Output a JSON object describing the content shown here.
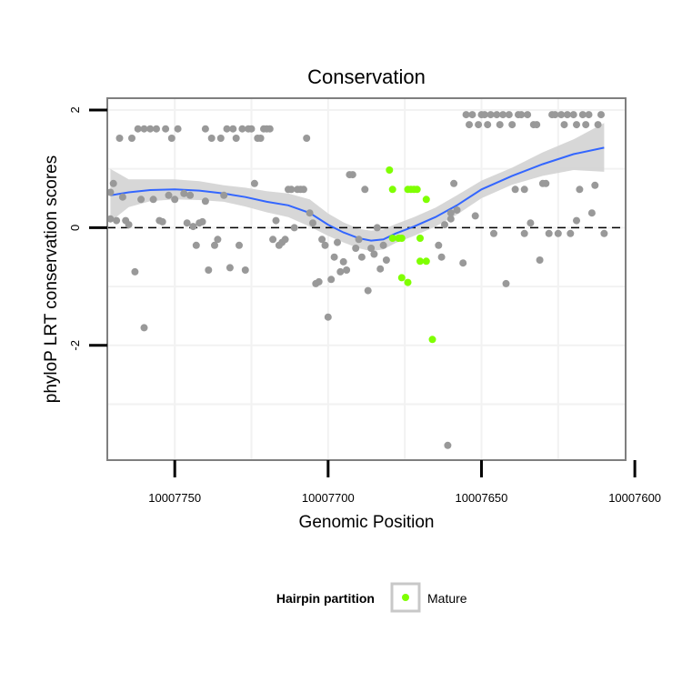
{
  "chart_data": {
    "type": "scatter",
    "title": "Conservation",
    "xlabel": "Genomic Position",
    "ylabel": "phyloP LRT conservation scores",
    "x_reversed": true,
    "xlim": [
      10007772,
      10007603
    ],
    "ylim": [
      -3.95,
      2.2
    ],
    "x_ticks": [
      10007750,
      10007700,
      10007650,
      10007600
    ],
    "x_tick_labels": [
      "10007750",
      "10007700",
      "10007650",
      "10007600"
    ],
    "y_ticks": [
      2,
      0,
      -2
    ],
    "y_tick_labels": [
      "2",
      "0",
      "-2"
    ],
    "grid": true,
    "reference_line": {
      "y": 0,
      "style": "dashed",
      "color": "#000000"
    },
    "legend": {
      "title": "Hairpin partition",
      "placement": "bottom",
      "entries": [
        {
          "label": "Mature",
          "color": "#7fff00"
        }
      ]
    },
    "colors": {
      "other": "#999999",
      "mature": "#7fff00",
      "smooth_line": "#3366ff",
      "ribbon": "#d3d3d3",
      "panel_border": "#7f7f7f",
      "grid": "#f2f2f2"
    },
    "series": [
      {
        "name": "Mature",
        "color": "#7fff00",
        "points": [
          [
            10007680,
            0.98
          ],
          [
            10007679,
            0.65
          ],
          [
            10007679,
            -0.18
          ],
          [
            10007677,
            -0.18
          ],
          [
            10007676,
            -0.18
          ],
          [
            10007676,
            -0.85
          ],
          [
            10007674,
            -0.93
          ],
          [
            10007674,
            0.65
          ],
          [
            10007673,
            0.65
          ],
          [
            10007672,
            0.65
          ],
          [
            10007671,
            0.65
          ],
          [
            10007670,
            -0.18
          ],
          [
            10007670,
            -0.57
          ],
          [
            10007668,
            0.48
          ],
          [
            10007668,
            -0.57
          ],
          [
            10007666,
            -1.9
          ]
        ]
      },
      {
        "name": "",
        "color": "#999999",
        "points": [
          [
            10007771,
            0.15
          ],
          [
            10007771,
            0.6
          ],
          [
            10007770,
            0.75
          ],
          [
            10007769,
            0.12
          ],
          [
            10007768,
            1.52
          ],
          [
            10007767,
            0.52
          ],
          [
            10007766,
            0.12
          ],
          [
            10007765,
            0.05
          ],
          [
            10007764,
            1.52
          ],
          [
            10007763,
            -0.75
          ],
          [
            10007762,
            1.68
          ],
          [
            10007761,
            0.48
          ],
          [
            10007760,
            -1.7
          ],
          [
            10007760,
            1.68
          ],
          [
            10007758,
            1.68
          ],
          [
            10007757,
            0.48
          ],
          [
            10007756,
            1.68
          ],
          [
            10007755,
            0.12
          ],
          [
            10007754,
            0.1
          ],
          [
            10007753,
            1.68
          ],
          [
            10007752,
            0.55
          ],
          [
            10007751,
            1.52
          ],
          [
            10007750,
            0.48
          ],
          [
            10007749,
            1.68
          ],
          [
            10007747,
            0.58
          ],
          [
            10007746,
            0.08
          ],
          [
            10007745,
            0.55
          ],
          [
            10007744,
            0.02
          ],
          [
            10007743,
            -0.3
          ],
          [
            10007742,
            0.08
          ],
          [
            10007741,
            0.1
          ],
          [
            10007740,
            1.68
          ],
          [
            10007740,
            0.45
          ],
          [
            10007739,
            -0.72
          ],
          [
            10007738,
            1.52
          ],
          [
            10007737,
            -0.3
          ],
          [
            10007736,
            -0.2
          ],
          [
            10007735,
            1.52
          ],
          [
            10007734,
            0.55
          ],
          [
            10007733,
            1.68
          ],
          [
            10007732,
            -0.68
          ],
          [
            10007731,
            1.68
          ],
          [
            10007730,
            1.52
          ],
          [
            10007729,
            -0.3
          ],
          [
            10007728,
            1.68
          ],
          [
            10007727,
            -0.72
          ],
          [
            10007726,
            1.68
          ],
          [
            10007725,
            1.68
          ],
          [
            10007724,
            0.75
          ],
          [
            10007723,
            1.52
          ],
          [
            10007722,
            1.52
          ],
          [
            10007721,
            1.68
          ],
          [
            10007720,
            1.68
          ],
          [
            10007719,
            1.68
          ],
          [
            10007718,
            -0.2
          ],
          [
            10007717,
            0.12
          ],
          [
            10007716,
            -0.3
          ],
          [
            10007715,
            -0.25
          ],
          [
            10007714,
            -0.2
          ],
          [
            10007713,
            0.65
          ],
          [
            10007712,
            0.65
          ],
          [
            10007711,
            0.0
          ],
          [
            10007710,
            0.65
          ],
          [
            10007709,
            0.65
          ],
          [
            10007708,
            0.65
          ],
          [
            10007707,
            1.52
          ],
          [
            10007706,
            0.25
          ],
          [
            10007705,
            0.08
          ],
          [
            10007704,
            -0.95
          ],
          [
            10007703,
            -0.92
          ],
          [
            10007702,
            -0.2
          ],
          [
            10007701,
            -0.3
          ],
          [
            10007700,
            -1.52
          ],
          [
            10007699,
            -0.88
          ],
          [
            10007698,
            -0.5
          ],
          [
            10007697,
            -0.25
          ],
          [
            10007696,
            -0.75
          ],
          [
            10007695,
            -0.58
          ],
          [
            10007694,
            -0.72
          ],
          [
            10007693,
            0.9
          ],
          [
            10007692,
            0.9
          ],
          [
            10007691,
            -0.35
          ],
          [
            10007690,
            -0.2
          ],
          [
            10007689,
            -0.5
          ],
          [
            10007688,
            0.65
          ],
          [
            10007687,
            -1.07
          ],
          [
            10007686,
            -0.35
          ],
          [
            10007685,
            -0.45
          ],
          [
            10007684,
            0.0
          ],
          [
            10007683,
            -0.7
          ],
          [
            10007682,
            -0.3
          ],
          [
            10007681,
            -0.55
          ],
          [
            10007664,
            -0.3
          ],
          [
            10007663,
            -0.5
          ],
          [
            10007662,
            0.05
          ],
          [
            10007661,
            -3.7
          ],
          [
            10007660,
            0.25
          ],
          [
            10007660,
            0.15
          ],
          [
            10007659,
            0.75
          ],
          [
            10007658,
            0.3
          ],
          [
            10007656,
            -0.6
          ],
          [
            10007655,
            1.92
          ],
          [
            10007654,
            1.75
          ],
          [
            10007653,
            1.92
          ],
          [
            10007652,
            0.2
          ],
          [
            10007651,
            1.75
          ],
          [
            10007650,
            1.92
          ],
          [
            10007649,
            1.92
          ],
          [
            10007648,
            1.75
          ],
          [
            10007647,
            1.92
          ],
          [
            10007646,
            -0.1
          ],
          [
            10007645,
            1.92
          ],
          [
            10007644,
            1.75
          ],
          [
            10007643,
            1.92
          ],
          [
            10007642,
            -0.95
          ],
          [
            10007641,
            1.92
          ],
          [
            10007640,
            1.75
          ],
          [
            10007639,
            0.65
          ],
          [
            10007638,
            1.92
          ],
          [
            10007637,
            1.92
          ],
          [
            10007636,
            -0.1
          ],
          [
            10007636,
            0.65
          ],
          [
            10007635,
            1.92
          ],
          [
            10007634,
            0.08
          ],
          [
            10007633,
            1.75
          ],
          [
            10007632,
            1.75
          ],
          [
            10007631,
            -0.55
          ],
          [
            10007630,
            0.75
          ],
          [
            10007629,
            0.75
          ],
          [
            10007628,
            -0.1
          ],
          [
            10007627,
            1.92
          ],
          [
            10007626,
            1.92
          ],
          [
            10007625,
            -0.1
          ],
          [
            10007624,
            1.92
          ],
          [
            10007623,
            1.75
          ],
          [
            10007622,
            1.92
          ],
          [
            10007621,
            -0.1
          ],
          [
            10007620,
            1.92
          ],
          [
            10007619,
            1.75
          ],
          [
            10007619,
            0.12
          ],
          [
            10007618,
            0.65
          ],
          [
            10007617,
            1.92
          ],
          [
            10007616,
            1.75
          ],
          [
            10007615,
            1.92
          ],
          [
            10007614,
            0.25
          ],
          [
            10007613,
            0.72
          ],
          [
            10007612,
            1.75
          ],
          [
            10007611,
            1.92
          ],
          [
            10007610,
            -0.1
          ]
        ]
      }
    ],
    "smooth": {
      "x": [
        10007771,
        10007765,
        10007758,
        10007750,
        10007742,
        10007734,
        10007727,
        10007720,
        10007713,
        10007706,
        10007700,
        10007695,
        10007690,
        10007686,
        10007682,
        10007678,
        10007672,
        10007665,
        10007658,
        10007650,
        10007640,
        10007630,
        10007620,
        10007610
      ],
      "y": [
        0.55,
        0.6,
        0.64,
        0.65,
        0.63,
        0.58,
        0.52,
        0.44,
        0.38,
        0.25,
        0.05,
        -0.08,
        -0.18,
        -0.22,
        -0.2,
        -0.1,
        0.02,
        0.18,
        0.38,
        0.65,
        0.88,
        1.08,
        1.25,
        1.36
      ],
      "lower": [
        0.1,
        0.35,
        0.45,
        0.48,
        0.47,
        0.44,
        0.36,
        0.26,
        0.18,
        0.02,
        -0.14,
        -0.25,
        -0.35,
        -0.4,
        -0.37,
        -0.26,
        -0.14,
        0.02,
        0.22,
        0.5,
        0.73,
        0.88,
        0.98,
        0.95
      ],
      "upper": [
        1.0,
        0.82,
        0.82,
        0.82,
        0.79,
        0.72,
        0.68,
        0.62,
        0.58,
        0.48,
        0.24,
        0.09,
        -0.02,
        -0.05,
        -0.03,
        0.06,
        0.18,
        0.34,
        0.55,
        0.8,
        1.02,
        1.28,
        1.5,
        1.78
      ]
    }
  }
}
